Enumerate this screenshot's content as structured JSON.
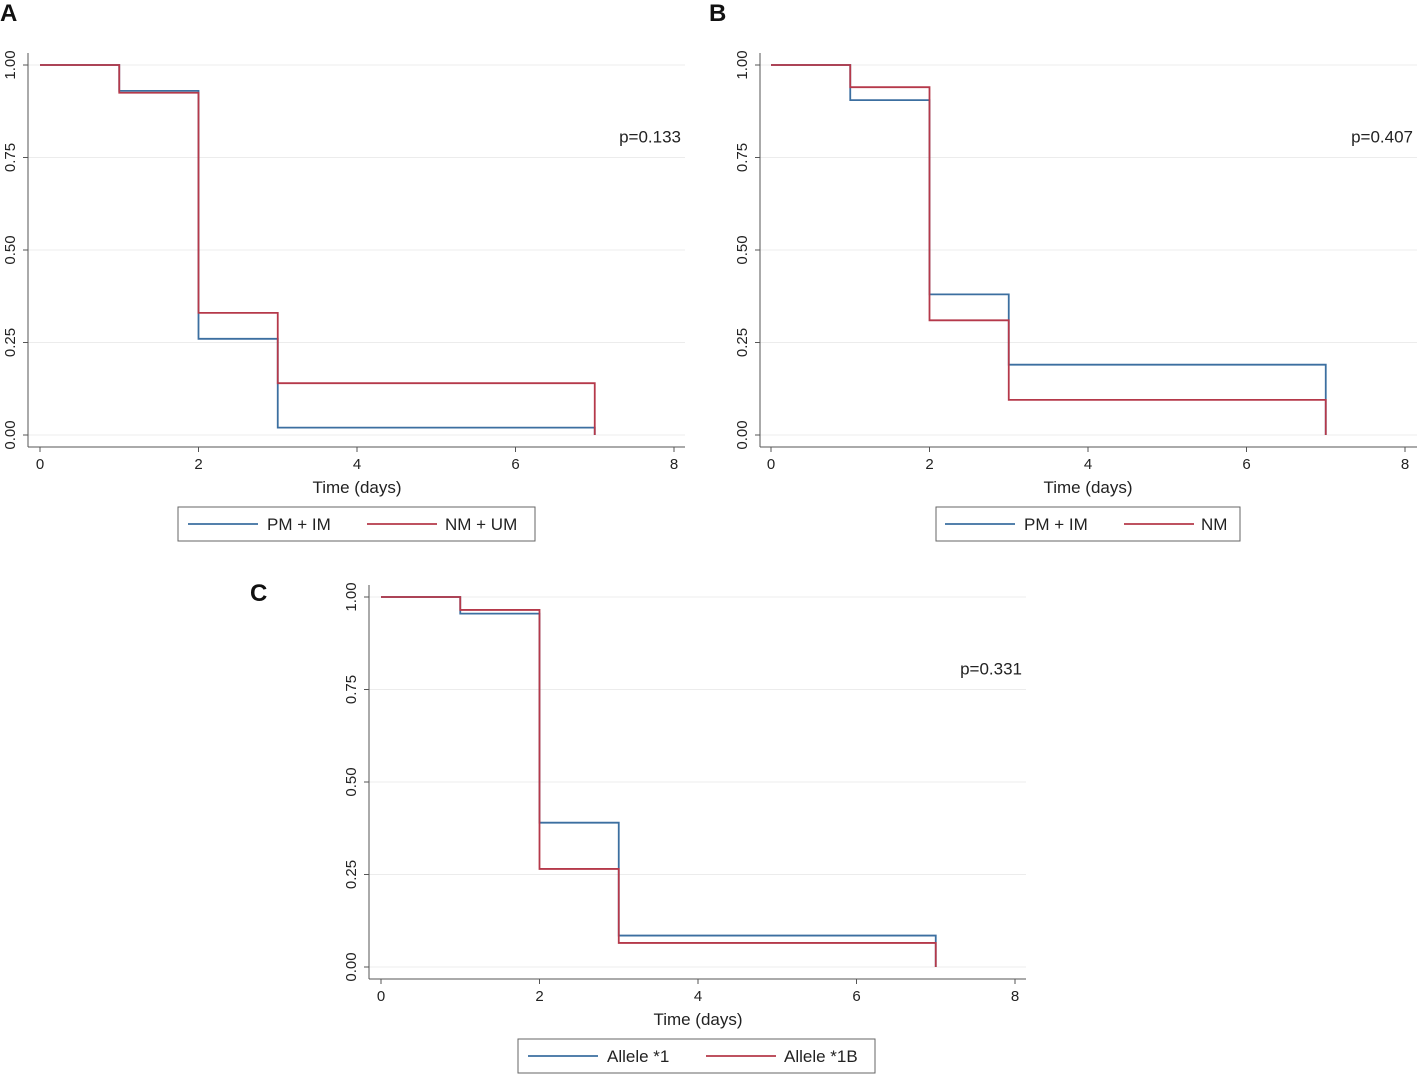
{
  "panels": [
    {
      "letter": "A"
    },
    {
      "letter": "B"
    },
    {
      "letter": "C"
    }
  ],
  "chart_data": [
    {
      "type": "line",
      "step": true,
      "xlabel": "Time (days)",
      "ylabel": "",
      "xlim": [
        0,
        8
      ],
      "ylim": [
        0,
        1
      ],
      "xticks": [
        "0",
        "2",
        "4",
        "6",
        "8"
      ],
      "yticks": [
        "0.00",
        "0.25",
        "0.50",
        "0.75",
        "1.00"
      ],
      "grid": true,
      "annotation": "p=0.133",
      "legend_position": "bottom",
      "series": [
        {
          "name": "PM + IM",
          "color": "#3c6fa0",
          "x": [
            0,
            1,
            2,
            3,
            7
          ],
          "y": [
            1.0,
            0.93,
            0.26,
            0.02,
            0.0
          ]
        },
        {
          "name": "NM + UM",
          "color": "#b5394a",
          "x": [
            0,
            1,
            2,
            3,
            7
          ],
          "y": [
            1.0,
            0.925,
            0.33,
            0.14,
            0.0
          ]
        }
      ]
    },
    {
      "type": "line",
      "step": true,
      "xlabel": "Time (days)",
      "ylabel": "",
      "xlim": [
        0,
        8
      ],
      "ylim": [
        0,
        1
      ],
      "xticks": [
        "0",
        "2",
        "4",
        "6",
        "8"
      ],
      "yticks": [
        "0.00",
        "0.25",
        "0.50",
        "0.75",
        "1.00"
      ],
      "grid": true,
      "annotation": "p=0.407",
      "legend_position": "bottom",
      "series": [
        {
          "name": "PM + IM",
          "color": "#3c6fa0",
          "x": [
            0,
            1,
            2,
            3,
            7
          ],
          "y": [
            1.0,
            0.905,
            0.38,
            0.19,
            0.0
          ]
        },
        {
          "name": "NM",
          "color": "#b5394a",
          "x": [
            0,
            1,
            2,
            3,
            7
          ],
          "y": [
            1.0,
            0.94,
            0.31,
            0.095,
            0.0
          ]
        }
      ]
    },
    {
      "type": "line",
      "step": true,
      "xlabel": "Time (days)",
      "ylabel": "",
      "xlim": [
        0,
        8
      ],
      "ylim": [
        0,
        1
      ],
      "xticks": [
        "0",
        "2",
        "4",
        "6",
        "8"
      ],
      "yticks": [
        "0.00",
        "0.25",
        "0.50",
        "0.75",
        "1.00"
      ],
      "grid": true,
      "annotation": "p=0.331",
      "legend_position": "bottom",
      "series": [
        {
          "name": "Allele *1",
          "color": "#3c6fa0",
          "x": [
            0,
            1,
            2,
            3,
            7
          ],
          "y": [
            1.0,
            0.955,
            0.39,
            0.085,
            0.0
          ]
        },
        {
          "name": "Allele *1B",
          "color": "#b5394a",
          "x": [
            0,
            1,
            2,
            3,
            7
          ],
          "y": [
            1.0,
            0.965,
            0.265,
            0.065,
            0.0
          ]
        }
      ]
    }
  ]
}
